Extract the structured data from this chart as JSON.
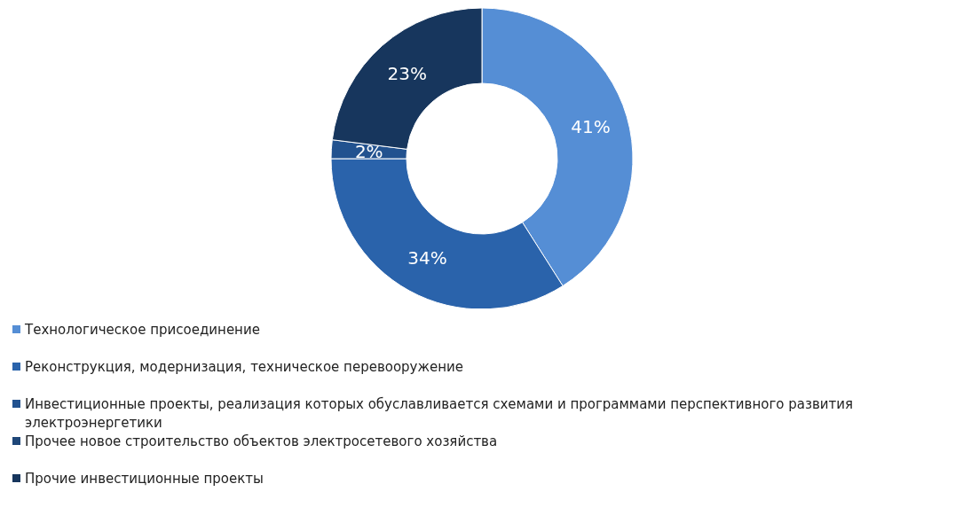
{
  "chart_data": {
    "type": "donut",
    "categories": [
      "Технологическое присоединение",
      "Реконструкция, модернизация, техническое перевооружение",
      "Инвестиционные проекты, реализация которых обуславливается схемами и программами перспективного развития электроэнергетики",
      "Прочее новое строительство объектов электросетевого хозяйства",
      "Прочие инвестиционные проекты"
    ],
    "values": [
      41,
      34,
      2,
      0,
      23
    ],
    "value_labels": [
      "41%",
      "34%",
      "2%",
      null,
      "23%"
    ],
    "colors": [
      "#558ed5",
      "#2a63ab",
      "#22528f",
      "#1f4778",
      "#17365d"
    ],
    "legend": "bottom"
  }
}
